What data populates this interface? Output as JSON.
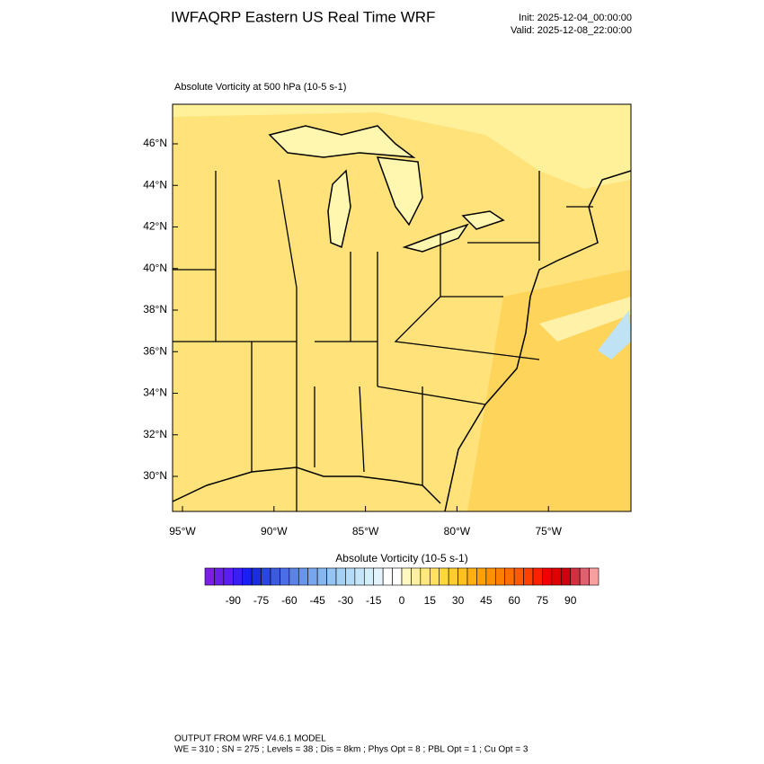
{
  "header": {
    "title": "IWFAQRP Eastern US Real Time WRF",
    "init": "Init: 2025-12-04_00:00:00",
    "valid": "Valid: 2025-12-08_22:00:00"
  },
  "map": {
    "field_label": "Absolute Vorticity at 500 hPa   (10-5 s-1)",
    "lat_labels": [
      "46°N",
      "44°N",
      "42°N",
      "40°N",
      "38°N",
      "36°N",
      "34°N",
      "32°N",
      "30°N"
    ],
    "lon_labels": [
      "95°W",
      "90°W",
      "85°W",
      "80°W",
      "75°W"
    ]
  },
  "colorbar": {
    "title": "Absolute Vorticity  (10-5 s-1)",
    "labels": [
      "-90",
      "-75",
      "-60",
      "-45",
      "-30",
      "-15",
      "0",
      "15",
      "30",
      "45",
      "60",
      "75",
      "90"
    ],
    "colors": [
      "#7b1fe0",
      "#6a1fe8",
      "#5a1ff0",
      "#3a1ff5",
      "#1a1ff5",
      "#1a2ee0",
      "#2a45e0",
      "#3a5ae0",
      "#4a6ee5",
      "#5a82e8",
      "#6a94eb",
      "#78a6ee",
      "#86b6f0",
      "#94c4f2",
      "#a4d0f4",
      "#b4dcf6",
      "#c4e6f8",
      "#d4eefa",
      "#e4f4fc",
      "#ffffff",
      "#ffffff",
      "#fff8c0",
      "#fff0a0",
      "#ffe880",
      "#ffe060",
      "#ffd840",
      "#ffcc30",
      "#ffc020",
      "#ffb010",
      "#ffa000",
      "#ff9000",
      "#ff8000",
      "#ff6e00",
      "#ff5a00",
      "#ff4000",
      "#ff2000",
      "#f00000",
      "#e00000",
      "#cc0010",
      "#d03040",
      "#e06070",
      "#f8a0a0"
    ]
  },
  "footer": {
    "line1": "OUTPUT FROM WRF V4.6.1 MODEL",
    "line2": "WE = 310 ; SN = 275 ; Levels = 38 ; Dis = 8km ; Phys Opt = 8 ; PBL Opt = 1 ; Cu Opt = 3"
  }
}
